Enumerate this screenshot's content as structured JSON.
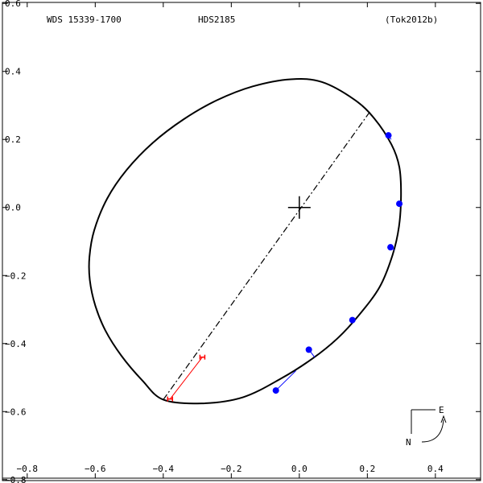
{
  "header": {
    "left": "WDS 15339-1700",
    "center": "HDS2185",
    "right": "(Tok2012b)"
  },
  "compass": {
    "east": "E",
    "north": "N"
  },
  "chart_data": {
    "type": "scatter",
    "title": "",
    "xlabel": "",
    "ylabel": "",
    "xlim": [
      -0.88,
      0.54
    ],
    "ylim": [
      -0.81,
      0.61
    ],
    "x_ticks": [
      -0.8,
      -0.6,
      -0.4,
      -0.2,
      0.0,
      0.2,
      0.4
    ],
    "x_tick_labels": [
      "−0.8",
      "−0.6",
      "−0.4",
      "−0.2",
      "0.0",
      "0.2",
      "0.4"
    ],
    "y_ticks": [
      0.6,
      0.4,
      0.2,
      0.0,
      -0.2,
      -0.4,
      -0.6,
      -0.8
    ],
    "y_tick_labels": [
      "0.6",
      "0.4",
      "0.2",
      "0.0",
      "−0.2",
      "−0.4",
      "−0.6",
      "−0.8"
    ],
    "grid": false,
    "primary": {
      "x": 0.0,
      "y": 0.0
    },
    "orbit": {
      "points": [
        [
          -0.4,
          -0.565
        ],
        [
          -0.462,
          -0.508
        ],
        [
          -0.523,
          -0.436
        ],
        [
          -0.57,
          -0.362
        ],
        [
          -0.6,
          -0.288
        ],
        [
          -0.616,
          -0.213
        ],
        [
          -0.617,
          -0.145
        ],
        [
          -0.603,
          -0.067
        ],
        [
          -0.565,
          0.026
        ],
        [
          -0.508,
          0.11
        ],
        [
          -0.431,
          0.19
        ],
        [
          -0.339,
          0.26
        ],
        [
          -0.243,
          0.315
        ],
        [
          -0.137,
          0.356
        ],
        [
          -0.025,
          0.377
        ],
        [
          0.066,
          0.369
        ],
        [
          0.162,
          0.317
        ],
        [
          0.221,
          0.261
        ],
        [
          0.271,
          0.185
        ],
        [
          0.294,
          0.119
        ],
        [
          0.299,
          0.036
        ],
        [
          0.293,
          -0.056
        ],
        [
          0.274,
          -0.14
        ],
        [
          0.236,
          -0.234
        ],
        [
          0.174,
          -0.318
        ],
        [
          0.112,
          -0.385
        ],
        [
          0.039,
          -0.444
        ],
        [
          -0.054,
          -0.503
        ],
        [
          -0.166,
          -0.558
        ],
        [
          -0.288,
          -0.576
        ],
        [
          -0.4,
          -0.565
        ]
      ],
      "line_of_nodes": [
        [
          -0.4,
          -0.565
        ],
        [
          0.21,
          0.285
        ]
      ]
    },
    "observations": [
      {
        "x": 0.262,
        "y": 0.212,
        "orbit": [
          0.27,
          0.2
        ]
      },
      {
        "x": 0.294,
        "y": 0.011,
        "orbit": [
          0.298,
          0.005
        ]
      },
      {
        "x": 0.268,
        "y": -0.117,
        "orbit": [
          0.28,
          -0.125
        ]
      },
      {
        "x": 0.156,
        "y": -0.331,
        "orbit": [
          0.16,
          -0.335
        ]
      },
      {
        "x": 0.028,
        "y": -0.418,
        "orbit": [
          0.045,
          -0.44
        ]
      },
      {
        "x": -0.069,
        "y": -0.538,
        "orbit": [
          -0.01,
          -0.48
        ]
      }
    ],
    "red_measure": {
      "from": [
        -0.285,
        -0.44
      ],
      "to": [
        -0.38,
        -0.563
      ]
    }
  }
}
